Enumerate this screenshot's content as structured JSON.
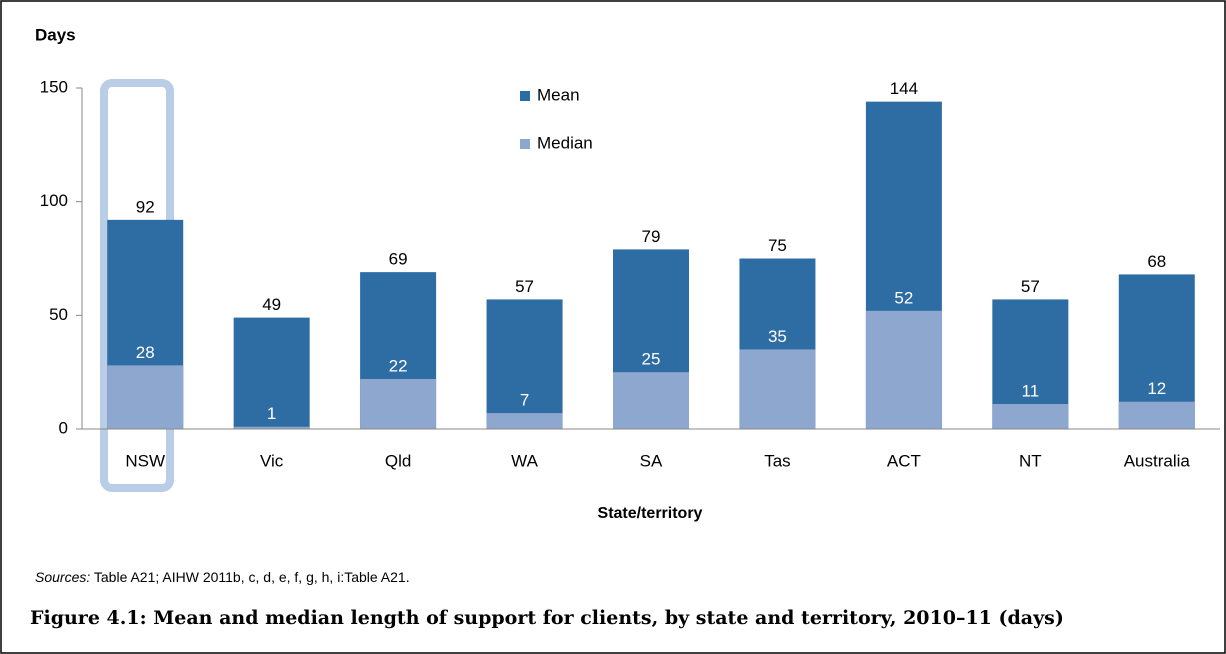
{
  "chart_data": {
    "type": "bar",
    "y_label": "Days",
    "x_label": "State/territory",
    "categories": [
      "NSW",
      "Vic",
      "Qld",
      "WA",
      "SA",
      "Tas",
      "ACT",
      "NT",
      "Australia"
    ],
    "series": [
      {
        "name": "Mean",
        "color": "#2e6ca4",
        "values": [
          92,
          49,
          69,
          57,
          79,
          75,
          144,
          57,
          68
        ]
      },
      {
        "name": "Median",
        "color": "#8ea7cf",
        "values": [
          28,
          1,
          22,
          7,
          25,
          35,
          52,
          11,
          12
        ]
      }
    ],
    "ylim": [
      0,
      150
    ],
    "yticks": [
      0,
      50,
      100,
      150
    ],
    "grid": false,
    "source_label": "Sources:",
    "source_text": " Table A21; AIHW 2011b, c, d, e, f, g, h, i:Table A21.",
    "caption": "Figure 4.1: Mean and median length of support for clients, by state and territory, 2010–11 (days)"
  }
}
